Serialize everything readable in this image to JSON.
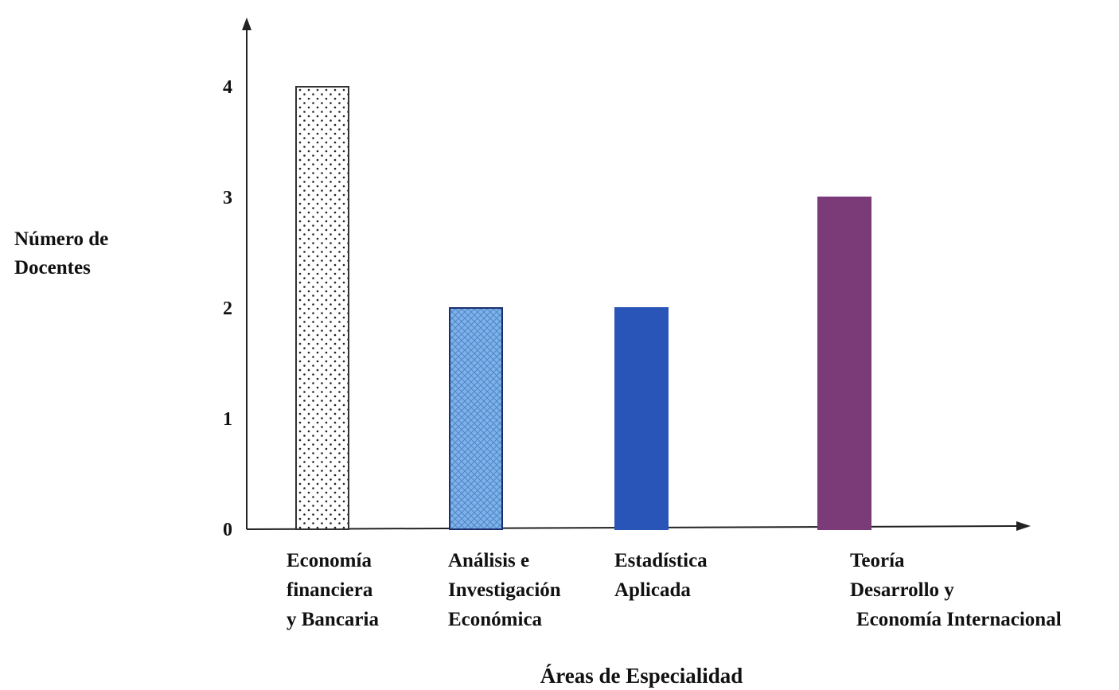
{
  "chart_data": {
    "type": "bar",
    "title": "",
    "ylabel_lines": [
      "Número de",
      "Docentes"
    ],
    "xlabel": "Áreas de Especialidad",
    "ylim": [
      0,
      4
    ],
    "yticks": [
      "0",
      "1",
      "2",
      "3",
      "4"
    ],
    "grid": false,
    "legend": "none",
    "categories": [
      [
        "Economía",
        "financiera",
        "y Bancaria"
      ],
      [
        "Análisis e",
        "Investigación",
        "Económica"
      ],
      [
        "Estadística",
        "Aplicada"
      ],
      [
        "Teoría",
        "Desarrollo y",
        "Economía Internacional"
      ]
    ],
    "values": [
      4,
      2,
      2,
      3
    ],
    "bar_styles": [
      {
        "fill": "#ffffff",
        "pattern": "dots",
        "edge": "#333333"
      },
      {
        "fill": "#7fb2e8",
        "pattern": "crosshatch",
        "edge": "#1a2f6e"
      },
      {
        "fill": "#2a55b8",
        "pattern": "none",
        "edge": "#2a55b8"
      },
      {
        "fill": "#7a3b78",
        "pattern": "none",
        "edge": "#7a3b78"
      }
    ]
  }
}
